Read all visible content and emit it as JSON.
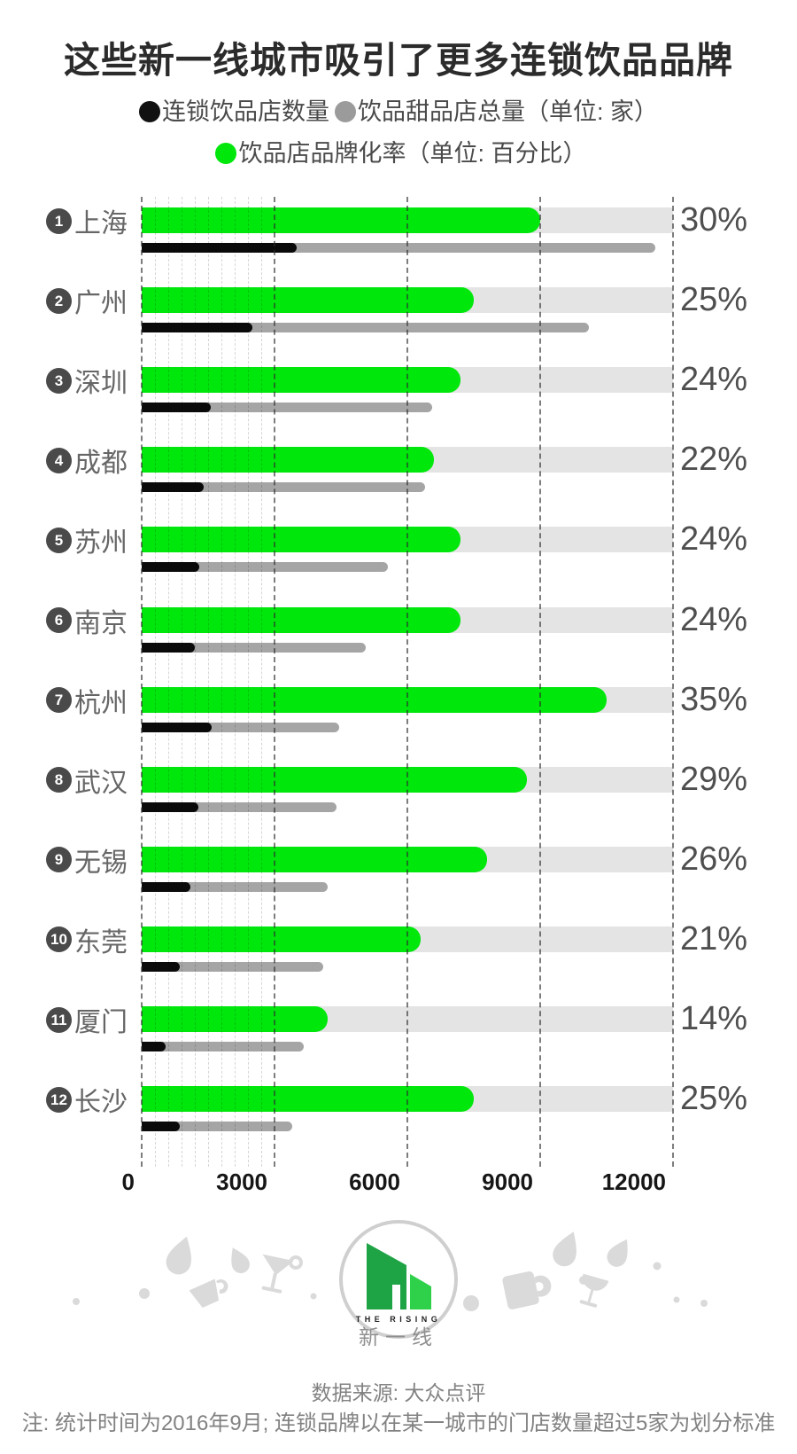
{
  "title": "这些新一线城市吸引了更多连锁饮品品牌",
  "legend": {
    "series_black": "连锁饮品店数量",
    "series_gray": "饮品甜品店总量（单位: 家）",
    "series_green": "饮品店品牌化率（单位: 百分比）"
  },
  "colors": {
    "green": "#00e70c",
    "black": "#0a0a0a",
    "gray": "#a5a5a5",
    "track": "#e4e4e4",
    "badge": "#4a4a4a",
    "logo_dark_green": "#1ea345",
    "logo_light_green": "#2fd14a"
  },
  "chart_data": {
    "type": "bar",
    "orientation": "horizontal",
    "title": "这些新一线城市吸引了更多连锁饮品品牌",
    "x_axis": {
      "min": 0,
      "max": 12000,
      "ticks": [
        0,
        3000,
        6000,
        9000,
        12000
      ],
      "tick_labels": [
        "0",
        "3000",
        "6000",
        "9000",
        "12000"
      ],
      "minor_grid_step": 300,
      "minor_grid_until": 3000,
      "grid": "dashed"
    },
    "percent_scale_max": 40,
    "series": [
      {
        "name": "连锁饮品店数量",
        "unit": "家",
        "color": "#0a0a0a"
      },
      {
        "name": "饮品甜品店总量",
        "unit": "家",
        "color": "#a5a5a5"
      },
      {
        "name": "饮品店品牌化率",
        "unit": "百分比",
        "color": "#00e70c"
      }
    ],
    "rows": [
      {
        "rank": 1,
        "city": "上海",
        "chain_stores": 3500,
        "total_stores": 11600,
        "brand_rate_pct": 30,
        "pct_label": "30%"
      },
      {
        "rank": 2,
        "city": "广州",
        "chain_stores": 2500,
        "total_stores": 10100,
        "brand_rate_pct": 25,
        "pct_label": "25%"
      },
      {
        "rank": 3,
        "city": "深圳",
        "chain_stores": 1550,
        "total_stores": 6550,
        "brand_rate_pct": 24,
        "pct_label": "24%"
      },
      {
        "rank": 4,
        "city": "成都",
        "chain_stores": 1400,
        "total_stores": 6400,
        "brand_rate_pct": 22,
        "pct_label": "22%"
      },
      {
        "rank": 5,
        "city": "苏州",
        "chain_stores": 1300,
        "total_stores": 5550,
        "brand_rate_pct": 24,
        "pct_label": "24%"
      },
      {
        "rank": 6,
        "city": "南京",
        "chain_stores": 1200,
        "total_stores": 5050,
        "brand_rate_pct": 24,
        "pct_label": "24%"
      },
      {
        "rank": 7,
        "city": "杭州",
        "chain_stores": 1570,
        "total_stores": 4460,
        "brand_rate_pct": 35,
        "pct_label": "35%"
      },
      {
        "rank": 8,
        "city": "武汉",
        "chain_stores": 1270,
        "total_stores": 4400,
        "brand_rate_pct": 29,
        "pct_label": "29%"
      },
      {
        "rank": 9,
        "city": "无锡",
        "chain_stores": 1100,
        "total_stores": 4200,
        "brand_rate_pct": 26,
        "pct_label": "26%"
      },
      {
        "rank": 10,
        "city": "东莞",
        "chain_stores": 850,
        "total_stores": 4100,
        "brand_rate_pct": 21,
        "pct_label": "21%"
      },
      {
        "rank": 11,
        "city": "厦门",
        "chain_stores": 530,
        "total_stores": 3650,
        "brand_rate_pct": 14,
        "pct_label": "14%"
      },
      {
        "rank": 12,
        "city": "长沙",
        "chain_stores": 850,
        "total_stores": 3400,
        "brand_rate_pct": 25,
        "pct_label": "25%"
      }
    ]
  },
  "logo": {
    "en": "THE RISING",
    "zh": "新一线"
  },
  "footer": {
    "source": "数据来源: 大众点评",
    "note": "注: 统计时间为2016年9月; 连锁品牌以在某一城市的门店数量超过5家为划分标准"
  }
}
